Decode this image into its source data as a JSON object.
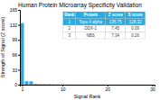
{
  "chart_data": {
    "type": "bar",
    "title": "Human Protein Microarray Specificity Validation",
    "x_label": "Signal Rank",
    "y_label": "Strength of Signal (Z score)",
    "x": [
      1,
      2,
      3,
      4,
      5,
      6,
      7,
      8,
      9,
      10,
      11,
      12,
      13,
      14,
      15,
      16,
      17,
      18,
      19,
      20,
      21,
      22,
      23,
      24,
      25,
      26,
      27,
      28,
      29,
      30
    ],
    "values": [
      135.75,
      7.45,
      7.34,
      1.5,
      1.2,
      1.0,
      0.9,
      0.8,
      0.7,
      0.6,
      0.55,
      0.5,
      0.45,
      0.4,
      0.38,
      0.35,
      0.33,
      0.31,
      0.29,
      0.27,
      0.25,
      0.23,
      0.22,
      0.21,
      0.2,
      0.19,
      0.18,
      0.17,
      0.16,
      0.15
    ],
    "color": "#29abe2",
    "xlim": [
      0.5,
      30.5
    ],
    "xticks": [
      1,
      10,
      20,
      30
    ],
    "ylim": [
      0,
      165
    ],
    "yticks": [
      0,
      33,
      66,
      99,
      132,
      165
    ],
    "table": [
      [
        "Rank",
        "Protein",
        "Z score",
        "S score"
      ],
      [
        "1",
        "Topo II alpha",
        "135.75",
        "128.32"
      ],
      [
        "2",
        "DDX-1",
        "7.45",
        "0.09"
      ],
      [
        "3",
        "NBS",
        "7.34",
        "0.26"
      ]
    ]
  }
}
